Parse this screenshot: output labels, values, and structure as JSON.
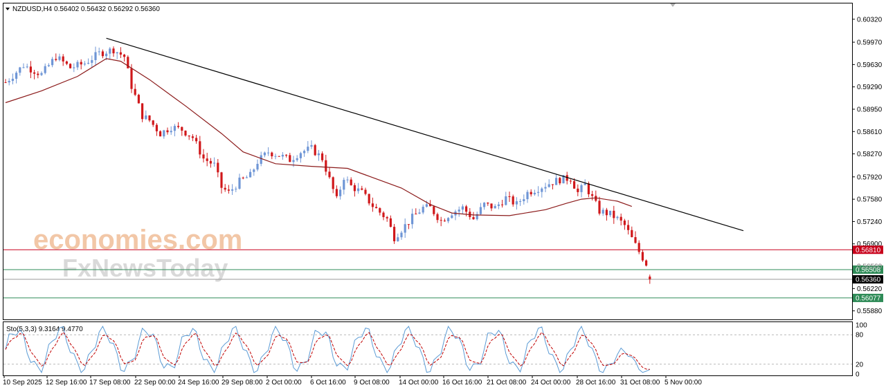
{
  "header": {
    "symbol_line": "NZDUSD,H4  0.56402 0.56432 0.56292 0.56360"
  },
  "watermark": {
    "line1": "economies.com",
    "line2": "FxNewsToday"
  },
  "colors": {
    "bull": "#6f96d6",
    "bear": "#d0181b",
    "ma": "#8b1a1a",
    "trendline": "#000000",
    "level_red": "#c8001b",
    "level_green": "#2e8b57",
    "current": "#000000",
    "stoch_main": "#5b9bd5",
    "stoch_signal": "#c00000"
  },
  "chart_data": {
    "type": "candlestick",
    "symbol": "NZDUSD",
    "timeframe": "H4",
    "ohlc_last": {
      "open": 0.56402,
      "high": 0.56432,
      "low": 0.56292,
      "close": 0.5636
    },
    "y_ticks": [
      "0.60320",
      "0.59970",
      "0.59630",
      "0.59290",
      "0.58950",
      "0.58610",
      "0.58270",
      "0.57920",
      "0.57580",
      "0.57240",
      "0.56900",
      "0.56560",
      "0.56220",
      "0.55880"
    ],
    "ylim": [
      0.5575,
      0.6056
    ],
    "x_ticks": [
      "10 Sep 2025",
      "12 Sep 16:00",
      "17 Sep 08:00",
      "22 Sep 00:00",
      "24 Sep 16:00",
      "29 Sep 08:00",
      "2 Oct 00:00",
      "6 Oct 16:00",
      "9 Oct 08:00",
      "14 Oct 00:00",
      "16 Oct 16:00",
      "21 Oct 08:00",
      "24 Oct 00:00",
      "28 Oct 16:00",
      "31 Oct 08:00",
      "5 Nov 00:00"
    ],
    "close_path": [
      [
        0,
        0.5936
      ],
      [
        5,
        0.5962
      ],
      [
        10,
        0.5948
      ],
      [
        14,
        0.5975
      ],
      [
        18,
        0.5958
      ],
      [
        22,
        0.5965
      ],
      [
        26,
        0.598
      ],
      [
        30,
        0.5986
      ],
      [
        33,
        0.5975
      ],
      [
        35,
        0.593
      ],
      [
        38,
        0.5885
      ],
      [
        40,
        0.5878
      ],
      [
        43,
        0.5858
      ],
      [
        46,
        0.5868
      ],
      [
        49,
        0.5864
      ],
      [
        52,
        0.5852
      ],
      [
        55,
        0.582
      ],
      [
        58,
        0.581
      ],
      [
        60,
        0.5776
      ],
      [
        62,
        0.5768
      ],
      [
        65,
        0.5785
      ],
      [
        68,
        0.5794
      ],
      [
        70,
        0.5815
      ],
      [
        73,
        0.583
      ],
      [
        76,
        0.5825
      ],
      [
        79,
        0.5818
      ],
      [
        82,
        0.583
      ],
      [
        85,
        0.5835
      ],
      [
        88,
        0.582
      ],
      [
        90,
        0.5788
      ],
      [
        92,
        0.5757
      ],
      [
        94,
        0.5792
      ],
      [
        96,
        0.5778
      ],
      [
        99,
        0.5768
      ],
      [
        102,
        0.5748
      ],
      [
        106,
        0.5728
      ],
      [
        108,
        0.57
      ],
      [
        110,
        0.5712
      ],
      [
        113,
        0.573
      ],
      [
        116,
        0.5745
      ],
      [
        118,
        0.5745
      ],
      [
        121,
        0.5725
      ],
      [
        124,
        0.5738
      ],
      [
        127,
        0.5745
      ],
      [
        130,
        0.5728
      ],
      [
        133,
        0.575
      ],
      [
        136,
        0.5745
      ],
      [
        139,
        0.576
      ],
      [
        142,
        0.575
      ],
      [
        145,
        0.5768
      ],
      [
        148,
        0.5775
      ],
      [
        151,
        0.5782
      ],
      [
        154,
        0.5788
      ],
      [
        157,
        0.579
      ],
      [
        159,
        0.5768
      ],
      [
        161,
        0.578
      ],
      [
        163,
        0.576
      ],
      [
        165,
        0.574
      ],
      [
        168,
        0.5735
      ],
      [
        170,
        0.5728
      ],
      [
        172,
        0.5718
      ],
      [
        174,
        0.5698
      ],
      [
        176,
        0.5678
      ],
      [
        178,
        0.566
      ],
      [
        179,
        0.5636
      ]
    ],
    "moving_average": [
      [
        0,
        0.5905
      ],
      [
        10,
        0.5923
      ],
      [
        20,
        0.5945
      ],
      [
        28,
        0.5972
      ],
      [
        32,
        0.5968
      ],
      [
        40,
        0.594
      ],
      [
        50,
        0.59
      ],
      [
        60,
        0.5858
      ],
      [
        66,
        0.583
      ],
      [
        75,
        0.5812
      ],
      [
        85,
        0.5808
      ],
      [
        95,
        0.5805
      ],
      [
        100,
        0.5795
      ],
      [
        110,
        0.5775
      ],
      [
        118,
        0.575
      ],
      [
        124,
        0.5737
      ],
      [
        130,
        0.5734
      ],
      [
        140,
        0.5733
      ],
      [
        150,
        0.5742
      ],
      [
        156,
        0.5752
      ],
      [
        160,
        0.5758
      ],
      [
        164,
        0.576
      ],
      [
        170,
        0.5755
      ],
      [
        174,
        0.5747
      ]
    ],
    "trendline": {
      "from": [
        28,
        0.6003
      ],
      "to": [
        205,
        0.571
      ]
    },
    "levels": [
      {
        "value": "0.56810",
        "color": "red"
      },
      {
        "value": "0.56508",
        "color": "green"
      },
      {
        "value": "0.56077",
        "color": "green"
      }
    ],
    "current_price": "0.56360",
    "hidden_level_label": "0.56560",
    "stochastic": {
      "label": "Sto(5,3,3) 9.3164 9.4770",
      "main": 9.3164,
      "signal": 9.477,
      "params": [
        5,
        3,
        3
      ],
      "levels": [
        "100",
        "80",
        "20",
        "0"
      ],
      "ylim": [
        0,
        100
      ]
    }
  }
}
